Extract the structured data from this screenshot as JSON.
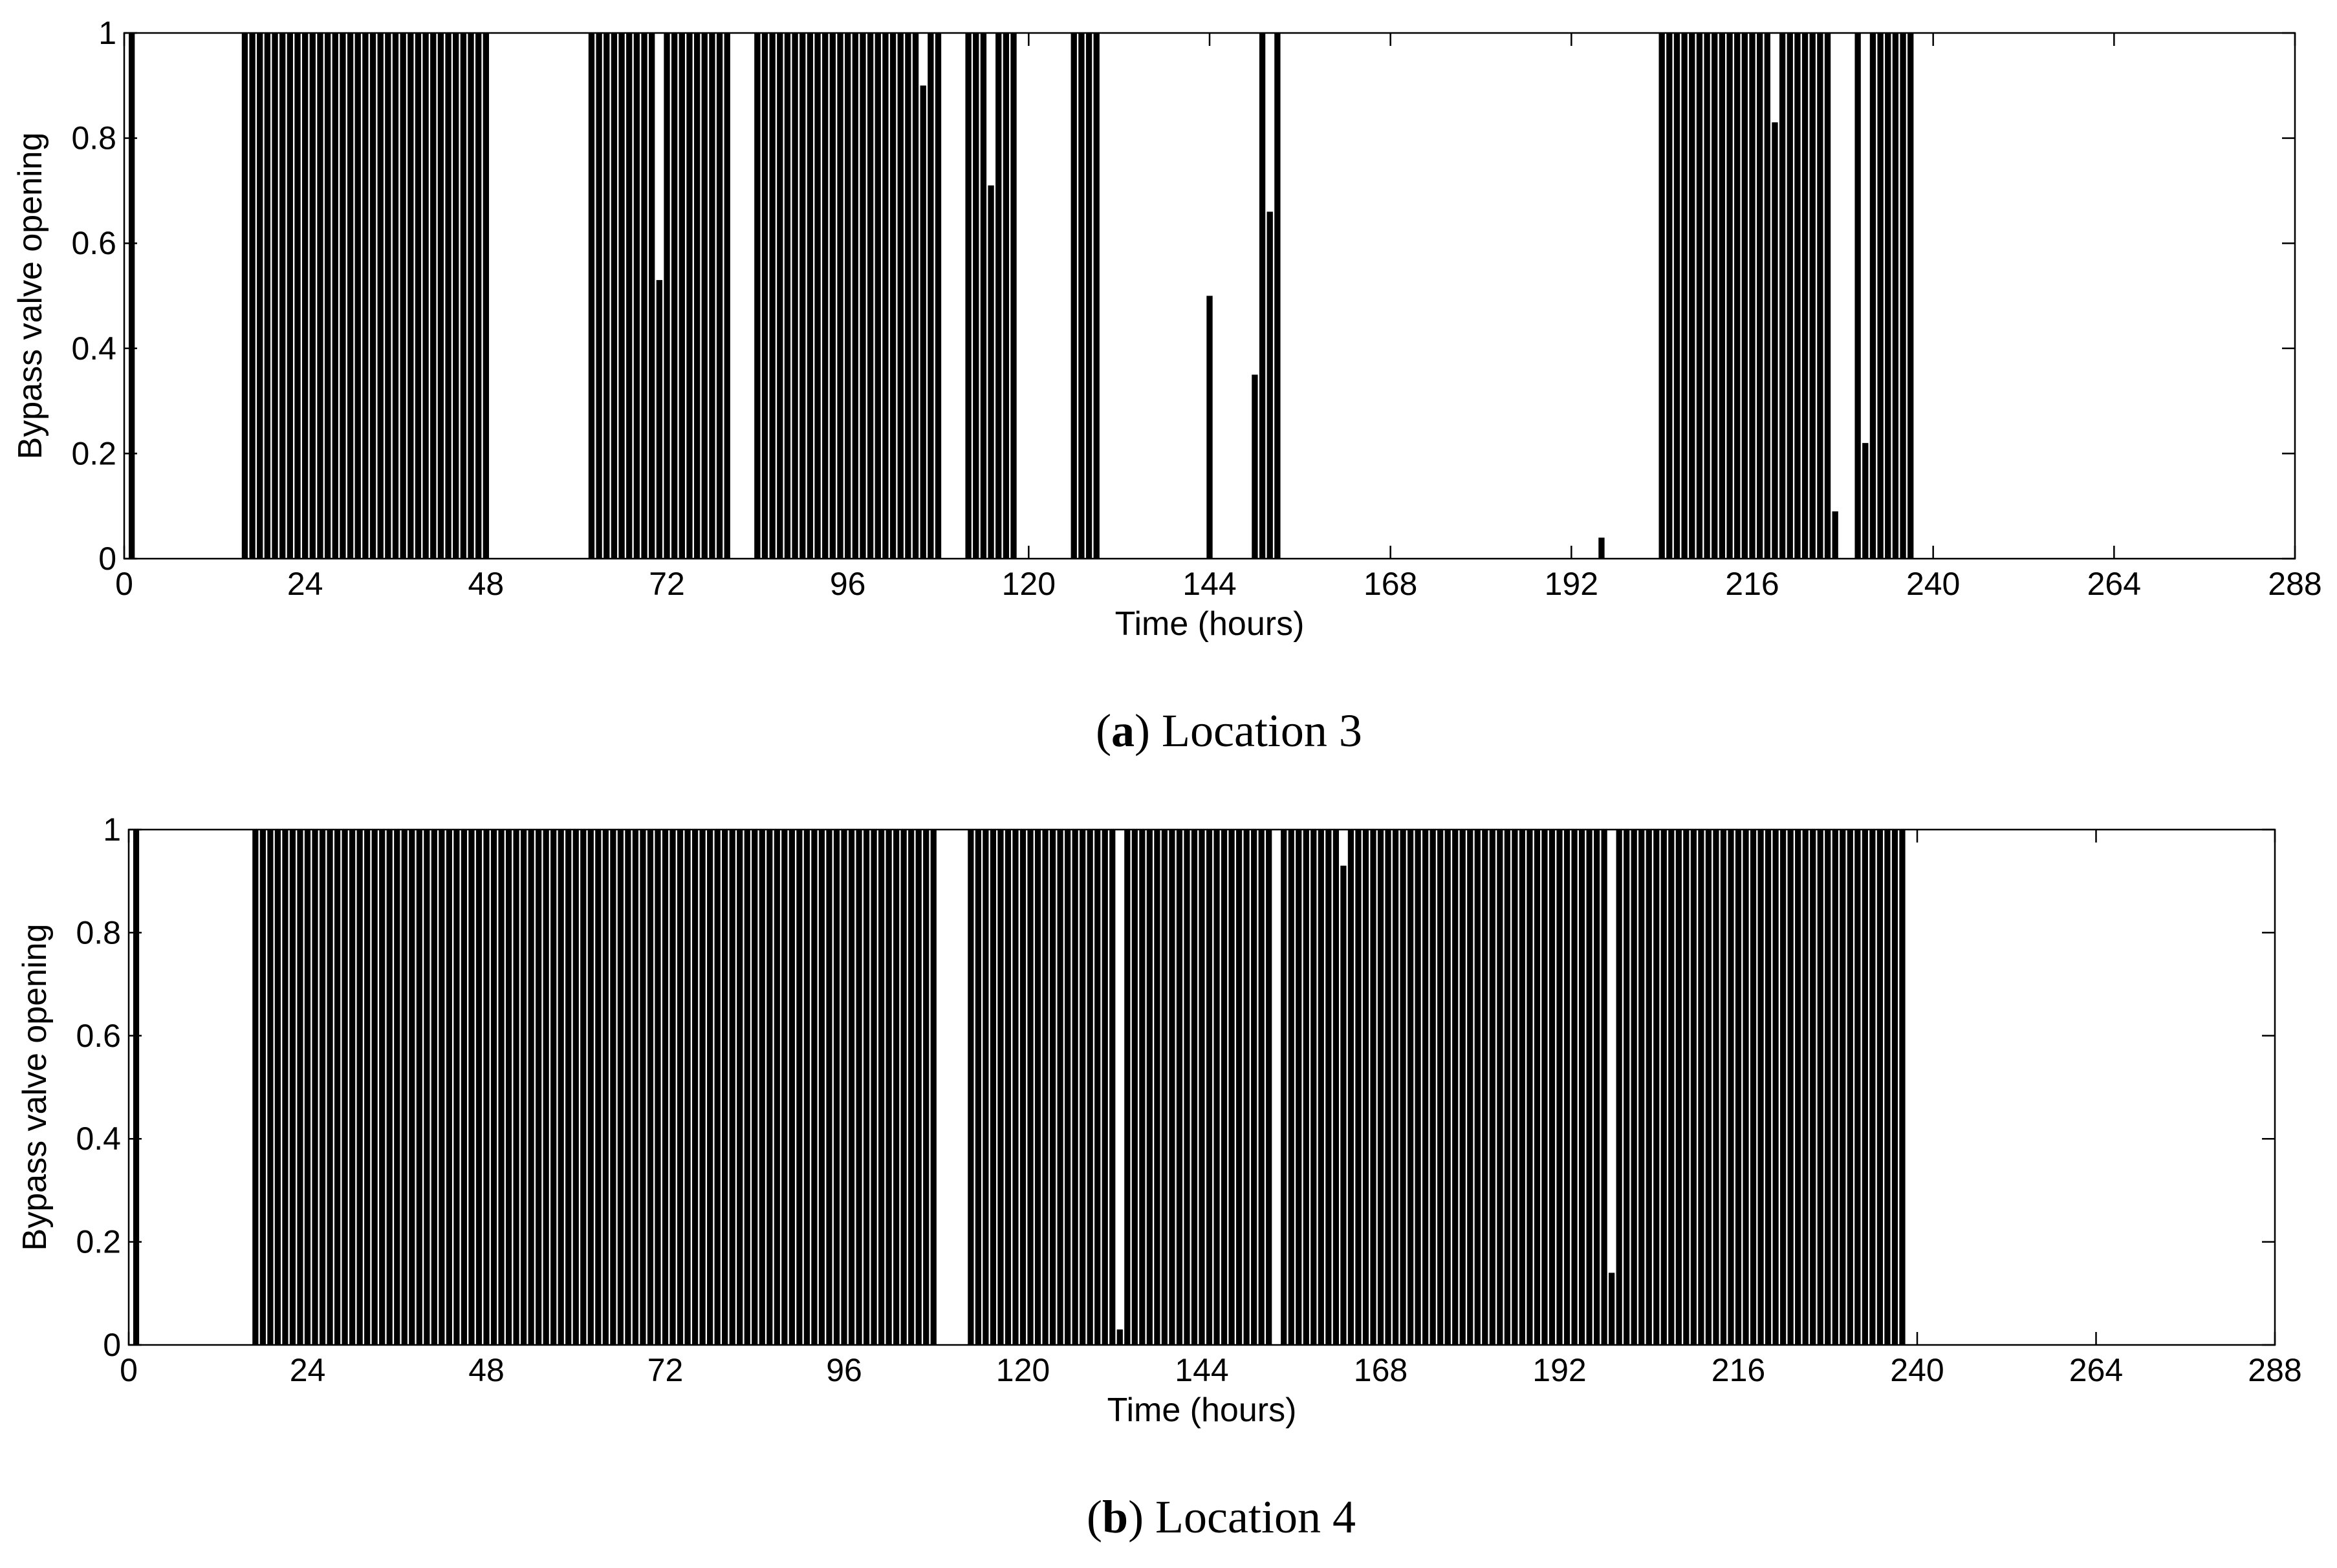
{
  "chart_data": [
    {
      "type": "bar",
      "caption": [
        "(",
        "a",
        ") Location 3"
      ],
      "xlabel": "Time (hours)",
      "ylabel": "Bypass valve opening",
      "color": "#000000",
      "xlim": [
        0,
        288
      ],
      "xticks": [
        0,
        24,
        48,
        72,
        96,
        120,
        144,
        168,
        192,
        216,
        240,
        264,
        288
      ],
      "ylim": [
        0,
        1
      ],
      "yticks": [
        0,
        0.2,
        0.4,
        0.6,
        0.8,
        1
      ],
      "x": [
        1,
        2,
        3,
        4,
        5,
        6,
        7,
        8,
        9,
        10,
        11,
        12,
        13,
        14,
        15,
        16,
        17,
        18,
        19,
        20,
        21,
        22,
        23,
        24,
        25,
        26,
        27,
        28,
        29,
        30,
        31,
        32,
        33,
        34,
        35,
        36,
        37,
        38,
        39,
        40,
        41,
        42,
        43,
        44,
        45,
        46,
        47,
        48,
        49,
        50,
        51,
        52,
        53,
        54,
        55,
        56,
        57,
        58,
        59,
        60,
        61,
        62,
        63,
        64,
        65,
        66,
        67,
        68,
        69,
        70,
        71,
        72,
        73,
        74,
        75,
        76,
        77,
        78,
        79,
        80,
        81,
        82,
        83,
        84,
        85,
        86,
        87,
        88,
        89,
        90,
        91,
        92,
        93,
        94,
        95,
        96,
        97,
        98,
        99,
        100,
        101,
        102,
        103,
        104,
        105,
        106,
        107,
        108,
        109,
        110,
        111,
        112,
        113,
        114,
        115,
        116,
        117,
        118,
        119,
        120,
        121,
        122,
        123,
        124,
        125,
        126,
        127,
        128,
        129,
        130,
        131,
        132,
        133,
        134,
        135,
        136,
        137,
        138,
        139,
        140,
        141,
        142,
        143,
        144,
        145,
        146,
        147,
        148,
        149,
        150,
        151,
        152,
        153,
        154,
        155,
        156,
        157,
        158,
        159,
        160,
        161,
        162,
        163,
        164,
        165,
        166,
        167,
        168,
        169,
        170,
        171,
        172,
        173,
        174,
        175,
        176,
        177,
        178,
        179,
        180,
        181,
        182,
        183,
        184,
        185,
        186,
        187,
        188,
        189,
        190,
        191,
        192,
        193,
        194,
        195,
        196,
        197,
        198,
        199,
        200,
        201,
        202,
        203,
        204,
        205,
        206,
        207,
        208,
        209,
        210,
        211,
        212,
        213,
        214,
        215,
        216,
        217,
        218,
        219,
        220,
        221,
        222,
        223,
        224,
        225,
        226,
        227,
        228,
        229,
        230,
        231,
        232,
        233,
        234,
        235,
        236,
        237,
        238,
        239,
        240,
        241,
        242,
        243,
        244,
        245,
        246,
        247,
        248,
        249,
        250,
        251,
        252,
        253,
        254,
        255,
        256,
        257,
        258,
        259,
        260,
        261,
        262,
        263,
        264,
        265,
        266,
        267,
        268,
        269,
        270,
        271,
        272,
        273,
        274,
        275,
        276,
        277,
        278,
        279,
        280,
        281,
        282,
        283,
        284,
        285,
        286,
        287,
        288
      ],
      "values": [
        1,
        0,
        0,
        0,
        0,
        0,
        0,
        0,
        0,
        0,
        0,
        0,
        0,
        0,
        0,
        1,
        1,
        1,
        1,
        1,
        1,
        1,
        1,
        1,
        1,
        1,
        1,
        1,
        1,
        1,
        1,
        1,
        1,
        1,
        1,
        1,
        1,
        1,
        1,
        1,
        1,
        1,
        1,
        1,
        1,
        1,
        1,
        1,
        0,
        0,
        0,
        0,
        0,
        0,
        0,
        0,
        0,
        0,
        0,
        0,
        0,
        1,
        1,
        1,
        1,
        1,
        1,
        1,
        1,
        1,
        0.53,
        1,
        1,
        1,
        1,
        1,
        1,
        1,
        1,
        1,
        0,
        0,
        0,
        1,
        1,
        1,
        1,
        1,
        1,
        1,
        1,
        1,
        1,
        1,
        1,
        1,
        1,
        1,
        1,
        1,
        1,
        1,
        1,
        1,
        1,
        0.9,
        1,
        1,
        0,
        0,
        0,
        1,
        1,
        1,
        0.71,
        1,
        1,
        1,
        0,
        0,
        0,
        0,
        0,
        0,
        0,
        1,
        1,
        1,
        1,
        0,
        0,
        0,
        0,
        0,
        0,
        0,
        0,
        0,
        0,
        0,
        0,
        0,
        0,
        0.5,
        0,
        0,
        0,
        0,
        0,
        0.35,
        1,
        0.66,
        1,
        0,
        0,
        0,
        0,
        0,
        0,
        0,
        0,
        0,
        0,
        0,
        0,
        0,
        0,
        0,
        0,
        0,
        0,
        0,
        0,
        0,
        0,
        0,
        0,
        0,
        0,
        0,
        0,
        0,
        0,
        0,
        0,
        0,
        0,
        0,
        0,
        0,
        0,
        0,
        0,
        0,
        0,
        0.04,
        0,
        0,
        0,
        0,
        0,
        0,
        0,
        1,
        1,
        1,
        1,
        1,
        1,
        1,
        1,
        1,
        1,
        1,
        1,
        1,
        1,
        1,
        0.83,
        1,
        1,
        1,
        1,
        1,
        1,
        1,
        0.09,
        0,
        0,
        1,
        0.22,
        1,
        1,
        1,
        1,
        1,
        1,
        0,
        0,
        0,
        0,
        0,
        0,
        0,
        0,
        0,
        0,
        0,
        0,
        0,
        0,
        0,
        0,
        0,
        0,
        0,
        0,
        0,
        0,
        0,
        0,
        0,
        0,
        0,
        0,
        0,
        0,
        0,
        0,
        0,
        0,
        0,
        0,
        0,
        0,
        0,
        0,
        0,
        0,
        0,
        0,
        0,
        0,
        0,
        0,
        0,
        0,
        0
      ]
    },
    {
      "type": "bar",
      "caption": [
        "(",
        "b",
        ") Location 4"
      ],
      "xlabel": "Time (hours)",
      "ylabel": "Bypass valve opening",
      "color": "#000000",
      "xlim": [
        0,
        288
      ],
      "xticks": [
        0,
        24,
        48,
        72,
        96,
        120,
        144,
        168,
        192,
        216,
        240,
        264,
        288
      ],
      "ylim": [
        0,
        1
      ],
      "yticks": [
        0,
        0.2,
        0.4,
        0.6,
        0.8,
        1
      ],
      "x": [
        1,
        2,
        3,
        4,
        5,
        6,
        7,
        8,
        9,
        10,
        11,
        12,
        13,
        14,
        15,
        16,
        17,
        18,
        19,
        20,
        21,
        22,
        23,
        24,
        25,
        26,
        27,
        28,
        29,
        30,
        31,
        32,
        33,
        34,
        35,
        36,
        37,
        38,
        39,
        40,
        41,
        42,
        43,
        44,
        45,
        46,
        47,
        48,
        49,
        50,
        51,
        52,
        53,
        54,
        55,
        56,
        57,
        58,
        59,
        60,
        61,
        62,
        63,
        64,
        65,
        66,
        67,
        68,
        69,
        70,
        71,
        72,
        73,
        74,
        75,
        76,
        77,
        78,
        79,
        80,
        81,
        82,
        83,
        84,
        85,
        86,
        87,
        88,
        89,
        90,
        91,
        92,
        93,
        94,
        95,
        96,
        97,
        98,
        99,
        100,
        101,
        102,
        103,
        104,
        105,
        106,
        107,
        108,
        109,
        110,
        111,
        112,
        113,
        114,
        115,
        116,
        117,
        118,
        119,
        120,
        121,
        122,
        123,
        124,
        125,
        126,
        127,
        128,
        129,
        130,
        131,
        132,
        133,
        134,
        135,
        136,
        137,
        138,
        139,
        140,
        141,
        142,
        143,
        144,
        145,
        146,
        147,
        148,
        149,
        150,
        151,
        152,
        153,
        154,
        155,
        156,
        157,
        158,
        159,
        160,
        161,
        162,
        163,
        164,
        165,
        166,
        167,
        168,
        169,
        170,
        171,
        172,
        173,
        174,
        175,
        176,
        177,
        178,
        179,
        180,
        181,
        182,
        183,
        184,
        185,
        186,
        187,
        188,
        189,
        190,
        191,
        192,
        193,
        194,
        195,
        196,
        197,
        198,
        199,
        200,
        201,
        202,
        203,
        204,
        205,
        206,
        207,
        208,
        209,
        210,
        211,
        212,
        213,
        214,
        215,
        216,
        217,
        218,
        219,
        220,
        221,
        222,
        223,
        224,
        225,
        226,
        227,
        228,
        229,
        230,
        231,
        232,
        233,
        234,
        235,
        236,
        237,
        238,
        239,
        240,
        241,
        242,
        243,
        244,
        245,
        246,
        247,
        248,
        249,
        250,
        251,
        252,
        253,
        254,
        255,
        256,
        257,
        258,
        259,
        260,
        261,
        262,
        263,
        264,
        265,
        266,
        267,
        268,
        269,
        270,
        271,
        272,
        273,
        274,
        275,
        276,
        277,
        278,
        279,
        280,
        281,
        282,
        283,
        284,
        285,
        286,
        287,
        288
      ],
      "values": [
        1,
        0,
        0,
        0,
        0,
        0,
        0,
        0,
        0,
        0,
        0,
        0,
        0,
        0,
        0,
        0,
        1,
        1,
        1,
        1,
        1,
        1,
        1,
        1,
        1,
        1,
        1,
        1,
        1,
        1,
        1,
        1,
        1,
        1,
        1,
        1,
        1,
        1,
        1,
        1,
        1,
        1,
        1,
        1,
        1,
        1,
        1,
        1,
        1,
        1,
        1,
        1,
        1,
        1,
        1,
        1,
        1,
        1,
        1,
        1,
        1,
        1,
        1,
        1,
        1,
        1,
        1,
        1,
        1,
        1,
        1,
        1,
        1,
        1,
        1,
        1,
        1,
        1,
        1,
        1,
        1,
        1,
        1,
        1,
        1,
        1,
        1,
        1,
        1,
        1,
        1,
        1,
        1,
        1,
        1,
        1,
        1,
        1,
        1,
        1,
        1,
        1,
        1,
        1,
        1,
        1,
        1,
        1,
        0,
        0,
        0,
        0,
        1,
        1,
        1,
        1,
        1,
        1,
        1,
        1,
        1,
        1,
        1,
        1,
        1,
        1,
        1,
        1,
        1,
        1,
        1,
        1,
        0.03,
        1,
        1,
        1,
        1,
        1,
        1,
        1,
        1,
        1,
        1,
        1,
        1,
        1,
        1,
        1,
        1,
        1,
        1,
        1,
        1,
        0,
        1,
        1,
        1,
        1,
        1,
        1,
        1,
        1,
        0.93,
        1,
        1,
        1,
        1,
        1,
        1,
        1,
        1,
        1,
        1,
        1,
        1,
        1,
        1,
        1,
        1,
        1,
        1,
        1,
        1,
        1,
        1,
        1,
        1,
        1,
        1,
        1,
        1,
        1,
        1,
        1,
        1,
        1,
        1,
        1,
        0.14,
        1,
        1,
        1,
        1,
        1,
        1,
        1,
        1,
        1,
        1,
        1,
        1,
        1,
        1,
        1,
        1,
        1,
        1,
        1,
        1,
        1,
        1,
        1,
        1,
        1,
        1,
        1,
        1,
        1,
        1,
        1,
        1,
        1,
        1,
        1,
        1,
        1,
        1,
        1,
        0,
        0,
        0,
        0,
        0,
        0,
        0,
        0,
        0,
        0,
        0,
        0,
        0,
        0,
        0,
        0,
        0,
        0,
        0,
        0,
        0,
        0,
        0,
        0,
        0,
        0,
        0,
        0,
        0,
        0,
        0,
        0,
        0,
        0,
        0,
        0,
        0,
        0,
        0,
        0,
        0,
        0,
        0,
        0,
        0,
        0,
        0,
        0,
        0,
        0
      ]
    }
  ]
}
